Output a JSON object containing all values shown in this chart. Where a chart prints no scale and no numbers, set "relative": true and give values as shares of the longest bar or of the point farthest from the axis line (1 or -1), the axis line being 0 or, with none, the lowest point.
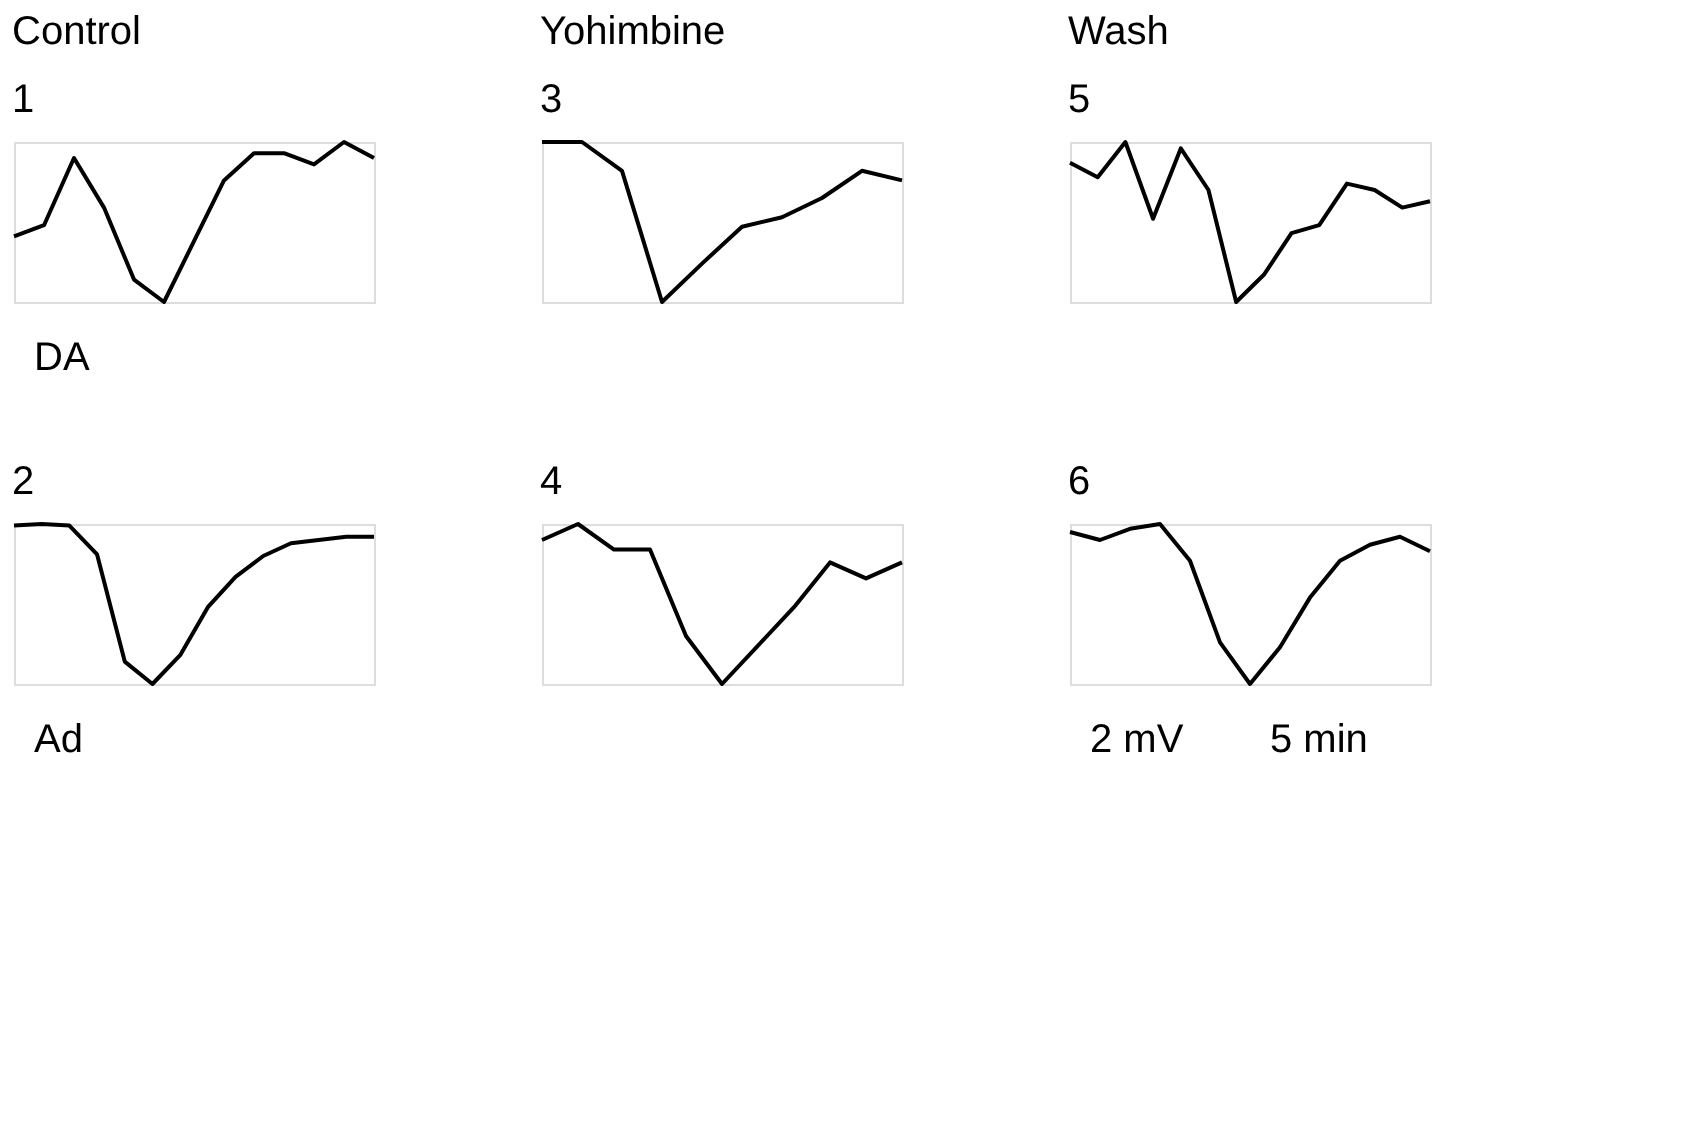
{
  "chart_data": [
    {
      "type": "line",
      "relative": true,
      "title": "Control",
      "subtitle": "1",
      "categories": [
        null,
        null,
        null,
        null,
        null,
        null,
        null,
        null,
        null,
        null,
        null,
        null,
        null
      ],
      "series": [
        {
          "color": "#000000",
          "values": [
            0.41,
            0.48,
            0.9,
            0.59,
            0.14,
            0,
            0.38,
            0.76,
            0.93,
            0.93,
            0.86,
            1,
            0.9
          ]
        }
      ],
      "annotations": [
        "DA"
      ]
    },
    {
      "type": "line",
      "relative": true,
      "title": "Yohimbine",
      "subtitle": "3",
      "categories": [
        null,
        null,
        null,
        null,
        null,
        null,
        null,
        null,
        null,
        null
      ],
      "series": [
        {
          "color": "#000000",
          "values": [
            1,
            1,
            0.82,
            0,
            0.24,
            0.47,
            0.53,
            0.65,
            0.82,
            0.76
          ]
        }
      ]
    },
    {
      "type": "line",
      "relative": true,
      "title": "Wash",
      "subtitle": "5",
      "categories": [
        null,
        null,
        null,
        null,
        null,
        null,
        null,
        null,
        null,
        null,
        null,
        null,
        null,
        null
      ],
      "series": [
        {
          "color": "#000000",
          "values": [
            0.87,
            0.78,
            1,
            0.52,
            0.96,
            0.7,
            0,
            0.17,
            0.43,
            0.48,
            0.74,
            0.7,
            0.59,
            0.63
          ]
        }
      ]
    },
    {
      "type": "line",
      "relative": true,
      "title": "2",
      "categories": [
        null,
        null,
        null,
        null,
        null,
        null,
        null,
        null,
        null,
        null,
        null,
        null,
        null,
        null
      ],
      "series": [
        {
          "color": "#000000",
          "values": [
            0.99,
            1,
            0.99,
            0.81,
            0.14,
            0,
            0.18,
            0.48,
            0.67,
            0.8,
            0.88,
            0.9,
            0.92,
            0.92
          ]
        }
      ],
      "annotations": [
        "Ad"
      ]
    },
    {
      "type": "line",
      "relative": true,
      "title": "4",
      "categories": [
        null,
        null,
        null,
        null,
        null,
        null,
        null,
        null,
        null,
        null,
        null
      ],
      "series": [
        {
          "color": "#000000",
          "values": [
            0.9,
            1,
            0.84,
            0.84,
            0.3,
            0,
            0.24,
            0.48,
            0.76,
            0.66,
            0.76
          ]
        }
      ]
    },
    {
      "type": "line",
      "relative": true,
      "title": "6",
      "categories": [
        null,
        null,
        null,
        null,
        null,
        null,
        null,
        null,
        null,
        null,
        null,
        null,
        null
      ],
      "series": [
        {
          "color": "#000000",
          "values": [
            0.95,
            0.9,
            0.97,
            1,
            0.77,
            0.26,
            0,
            0.23,
            0.54,
            0.77,
            0.87,
            0.92,
            0.83
          ]
        }
      ],
      "annotations": [
        "2 mV",
        "5 min"
      ]
    }
  ]
}
